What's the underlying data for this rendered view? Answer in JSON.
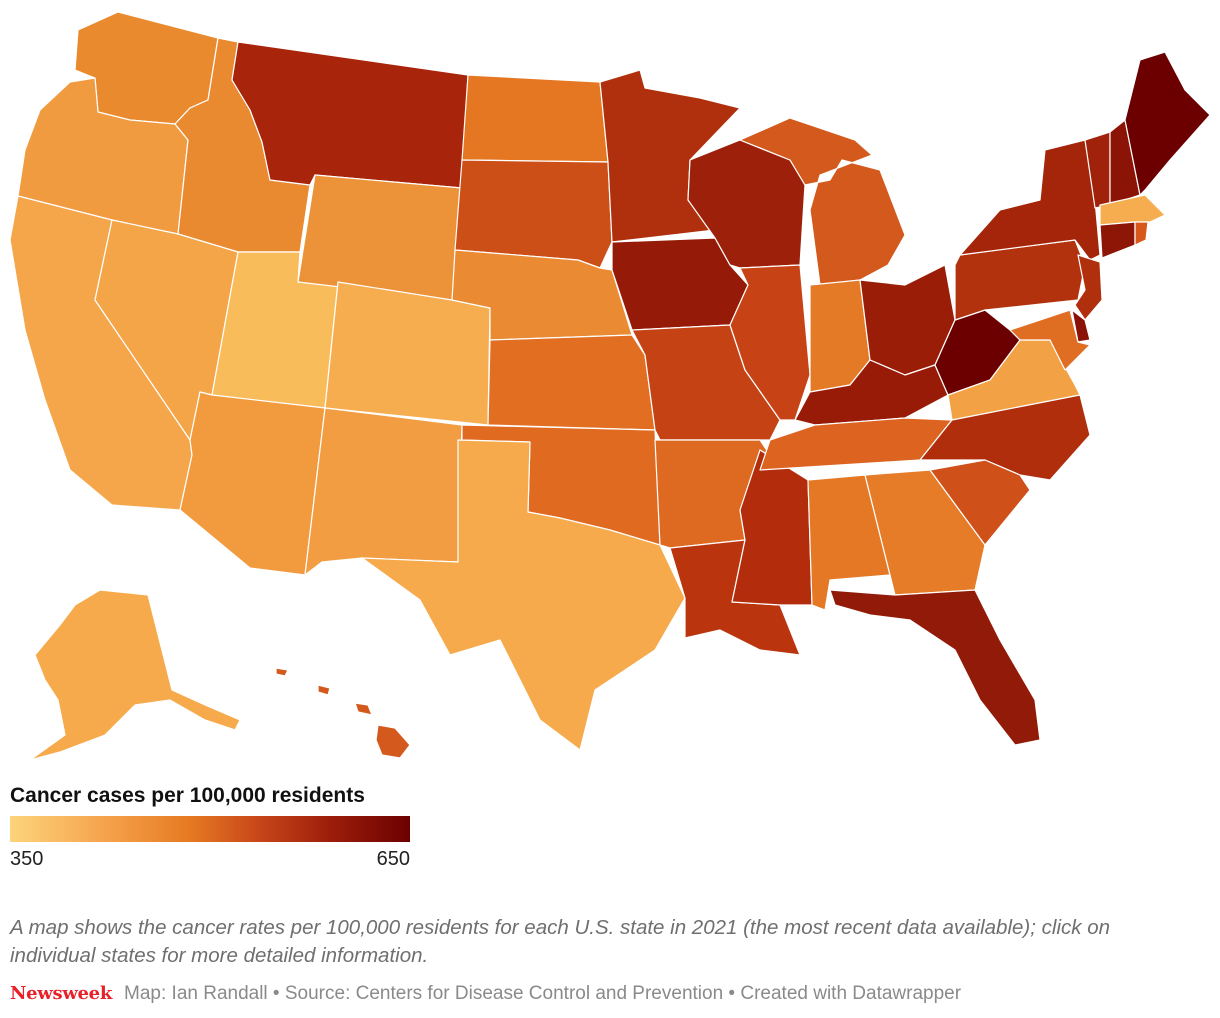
{
  "legend": {
    "title": "Cancer cases per 100,000 residents",
    "min_label": "350",
    "max_label": "650",
    "min_value": 350,
    "max_value": 650,
    "colors": [
      "#fdd47b",
      "#f5a04a",
      "#e57a22",
      "#c9461a",
      "#9c1e0a",
      "#6c0000"
    ]
  },
  "caption": "A map shows the cancer rates per 100,000 residents for each U.S. state in 2021 (the most recent data available); click on individual states for more detailed information.",
  "footer": {
    "brand": "Newsweek",
    "credits": "Map: Ian Randall • Source: Centers for Disease Control and Prevention • Created with Datawrapper"
  },
  "states": {
    "WA": {
      "color": "#e98a2e"
    },
    "OR": {
      "color": "#f19b40"
    },
    "CA": {
      "color": "#f5a54a"
    },
    "ID": {
      "color": "#ea8a30"
    },
    "NV": {
      "color": "#f4a548"
    },
    "UT": {
      "color": "#f9bc5b"
    },
    "AZ": {
      "color": "#f19a3e"
    },
    "MT": {
      "color": "#a8240a"
    },
    "WY": {
      "color": "#ec9238"
    },
    "CO": {
      "color": "#f6ad4f"
    },
    "NM": {
      "color": "#f29d42"
    },
    "ND": {
      "color": "#e57722"
    },
    "SD": {
      "color": "#cc4f18"
    },
    "NE": {
      "color": "#ea8a32"
    },
    "KS": {
      "color": "#e26e22"
    },
    "OK": {
      "color": "#e06a20"
    },
    "TX": {
      "color": "#f6aa4b"
    },
    "MN": {
      "color": "#b0300e"
    },
    "IA": {
      "color": "#961a08"
    },
    "MO": {
      "color": "#c54215"
    },
    "AR": {
      "color": "#de6a22"
    },
    "LA": {
      "color": "#ba350e"
    },
    "WI": {
      "color": "#9d200a"
    },
    "IL": {
      "color": "#c74316"
    },
    "MS": {
      "color": "#b32c0c"
    },
    "MI": {
      "color": "#d35a1c"
    },
    "IN": {
      "color": "#e47a26"
    },
    "KY": {
      "color": "#981b08"
    },
    "TN": {
      "color": "#dc6420"
    },
    "AL": {
      "color": "#e47824"
    },
    "OH": {
      "color": "#9a1d08"
    },
    "GA": {
      "color": "#e67c28"
    },
    "FL": {
      "color": "#921a08"
    },
    "WV": {
      "color": "#6c0000"
    },
    "VA": {
      "color": "#f2a244"
    },
    "NC": {
      "color": "#b02e0c"
    },
    "SC": {
      "color": "#d0501a"
    },
    "PA": {
      "color": "#b2320e"
    },
    "NY": {
      "color": "#a5250a"
    },
    "VT": {
      "color": "#a0220a"
    },
    "NH": {
      "color": "#8c1406"
    },
    "ME": {
      "color": "#6c0000"
    },
    "MA": {
      "color": "#f6ad4f"
    },
    "CT": {
      "color": "#8e1606"
    },
    "NJ": {
      "color": "#b0300e"
    },
    "DE": {
      "color": "#8a1206"
    },
    "MD": {
      "color": "#e06e22"
    },
    "RI": {
      "color": "#d8581c"
    },
    "AK": {
      "color": "#f6aa4b"
    },
    "HI": {
      "color": "#d35a1c"
    }
  }
}
